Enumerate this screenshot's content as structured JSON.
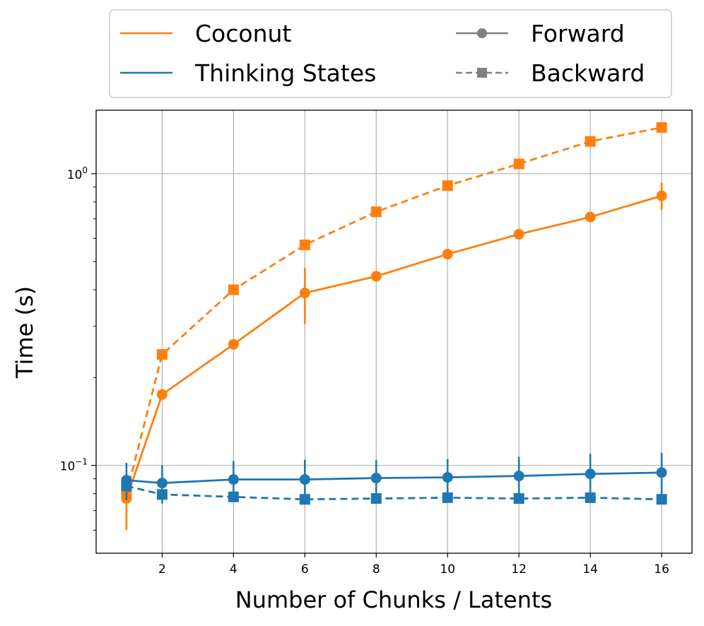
{
  "chart_data": {
    "type": "line",
    "x": [
      1,
      2,
      4,
      6,
      8,
      10,
      12,
      14,
      16
    ],
    "xticks": [
      2,
      4,
      6,
      8,
      10,
      12,
      14,
      16
    ],
    "xtick_labels": [
      "2",
      "4",
      "6",
      "8",
      "10",
      "12",
      "14",
      "16"
    ],
    "xlim": [
      0.15,
      16.85
    ],
    "yscale": "log",
    "ylim": [
      0.05,
      1.65
    ],
    "yticks": [
      0.1,
      1.0
    ],
    "ytick_labels": [
      {
        "base": "10",
        "exp": "−1"
      },
      {
        "base": "10",
        "exp": "0"
      }
    ],
    "xlabel": "Number of Chunks / Latents",
    "ylabel": "Time (s)",
    "grid": true,
    "colors": {
      "coconut": "#ff7f0e",
      "thinking": "#1f77b4",
      "legend_gray": "#808080"
    },
    "series": [
      {
        "name": "Coconut Forward",
        "method": "Coconut",
        "mode": "Forward",
        "color": "#ff7f0e",
        "linestyle": "solid",
        "marker": "circle",
        "values": [
          0.077,
          0.175,
          0.26,
          0.39,
          0.445,
          0.53,
          0.62,
          0.71,
          0.84
        ],
        "err": [
          0.017,
          0.006,
          0.005,
          0.085,
          0.01,
          0.008,
          0.008,
          0.01,
          0.09
        ]
      },
      {
        "name": "Coconut Backward",
        "method": "Coconut",
        "mode": "Backward",
        "color": "#ff7f0e",
        "linestyle": "dashed",
        "marker": "square",
        "values": [
          0.08,
          0.24,
          0.4,
          0.57,
          0.74,
          0.91,
          1.08,
          1.29,
          1.44
        ],
        "err": [
          0.003,
          0.004,
          0.005,
          0.006,
          0.008,
          0.01,
          0.012,
          0.015,
          0.02
        ]
      },
      {
        "name": "Thinking States Forward",
        "method": "Thinking States",
        "mode": "Forward",
        "color": "#1f77b4",
        "linestyle": "solid",
        "marker": "circle",
        "values": [
          0.089,
          0.087,
          0.0895,
          0.0895,
          0.0905,
          0.091,
          0.092,
          0.0935,
          0.0945
        ],
        "err": [
          0.013,
          0.013,
          0.014,
          0.015,
          0.014,
          0.014,
          0.015,
          0.016,
          0.016
        ]
      },
      {
        "name": "Thinking States Backward",
        "method": "Thinking States",
        "mode": "Backward",
        "color": "#1f77b4",
        "linestyle": "dashed",
        "marker": "square",
        "values": [
          0.085,
          0.0795,
          0.078,
          0.0765,
          0.077,
          0.0775,
          0.077,
          0.0775,
          0.0765
        ],
        "err": [
          0.002,
          0.002,
          0.002,
          0.002,
          0.002,
          0.002,
          0.002,
          0.002,
          0.002
        ]
      }
    ],
    "legend": {
      "placement": "top, above plot",
      "items": [
        {
          "label": "Coconut",
          "color": "#ff7f0e",
          "style": "line"
        },
        {
          "label": "Forward",
          "color": "#808080",
          "style": "solid-circle"
        },
        {
          "label": "Thinking States",
          "color": "#1f77b4",
          "style": "line"
        },
        {
          "label": "Backward",
          "color": "#808080",
          "style": "dashed-square"
        }
      ]
    }
  }
}
